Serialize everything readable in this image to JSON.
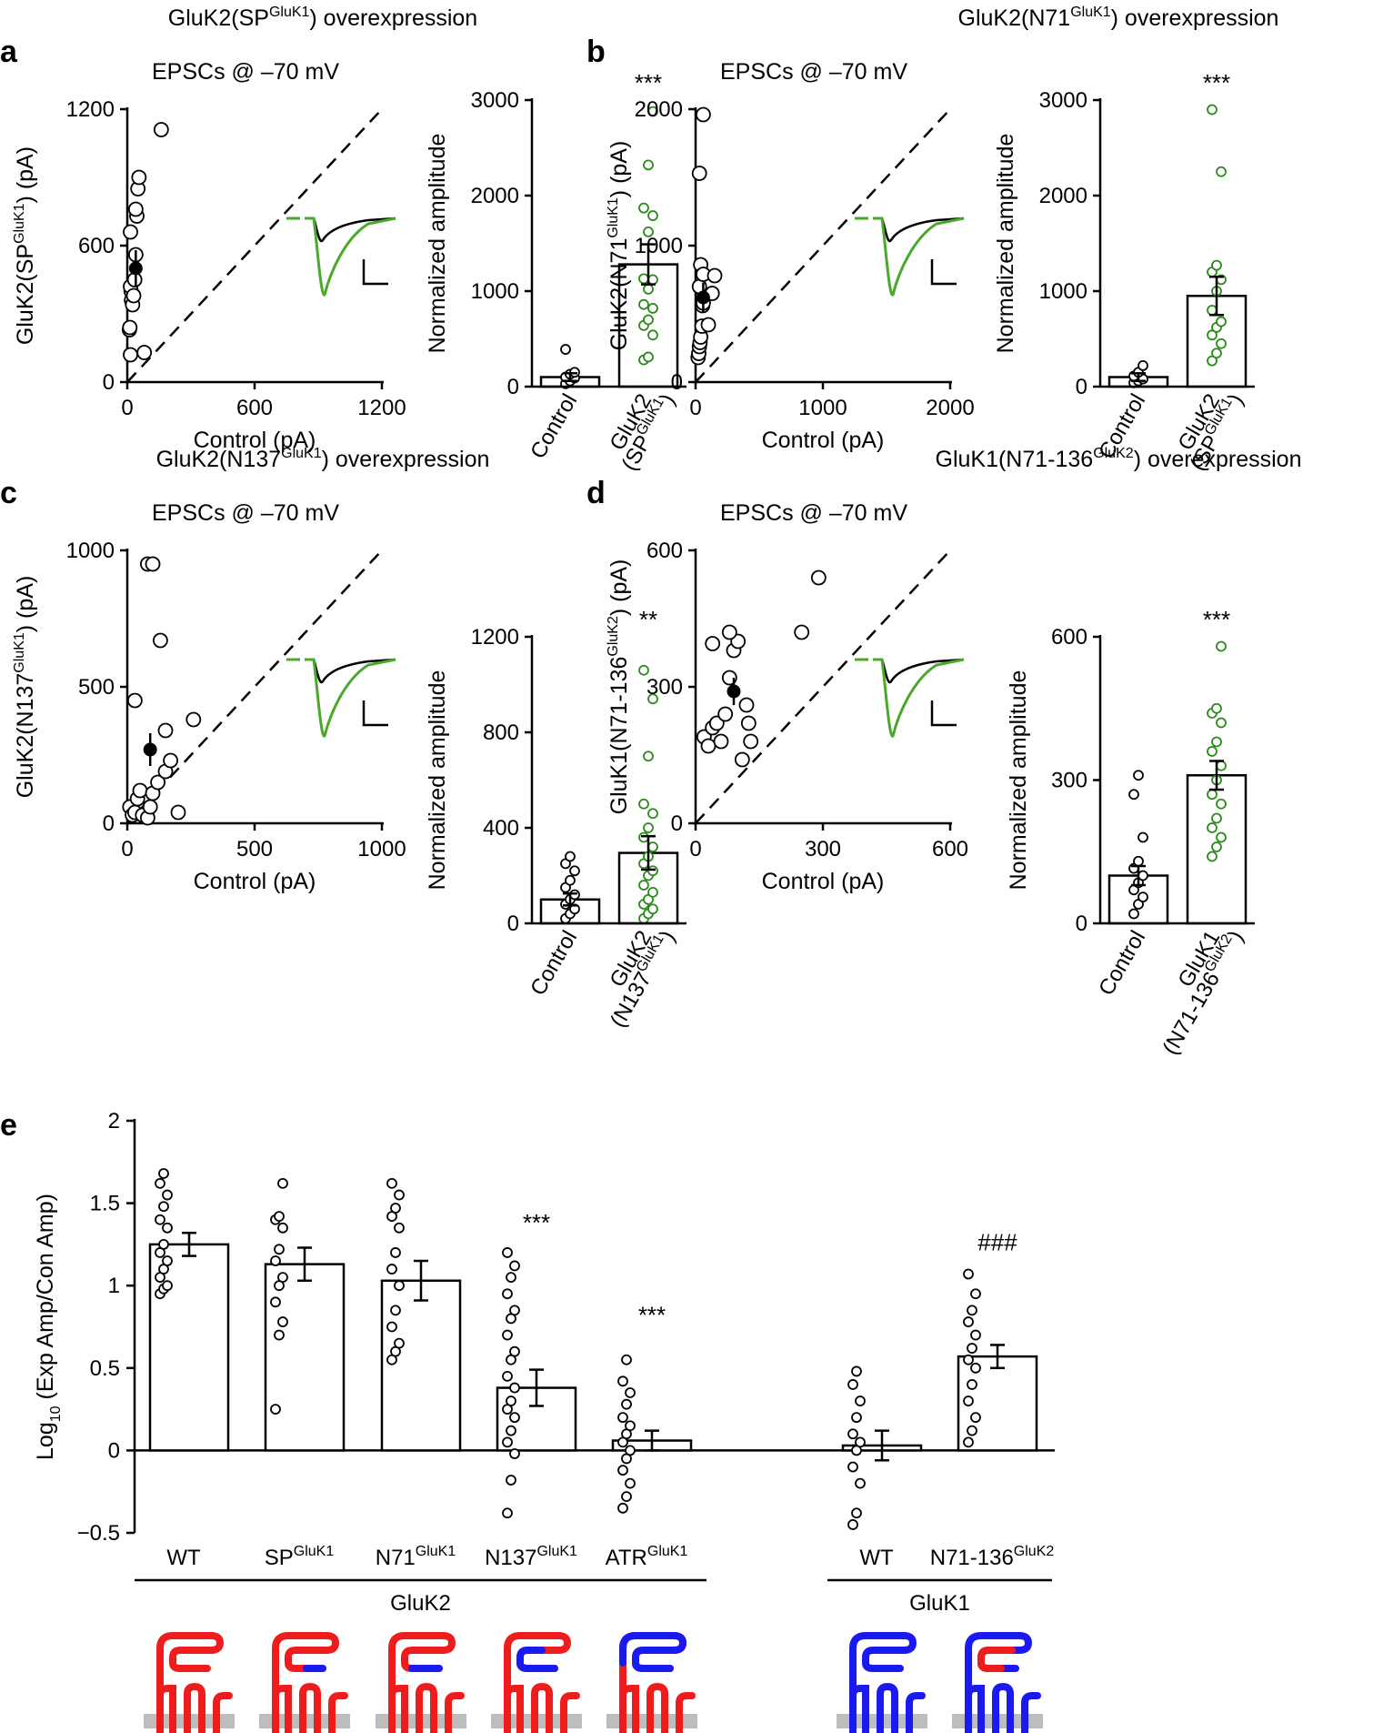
{
  "colors": {
    "control": "#000000",
    "experimental": "#2a8a1a",
    "trace_green": "#4aa82a",
    "gluk2_red": "#ee1c1c",
    "gluk1_blue": "#1a1af0",
    "membrane": "#bdbdbd"
  },
  "chart_data": [
    {
      "id": "a",
      "letter": "a",
      "title": {
        "base": "GluK2(SP",
        "sup": "GluK1",
        "rest": ") overexpression"
      },
      "scatter": {
        "type": "scatter",
        "subtitle": "EPSCs @ –70 mV",
        "xlabel": "Control (pA)",
        "ylabel": {
          "base": "GluK2(SP",
          "sup": "GluK1",
          "rest": ") (pA)"
        },
        "xlim": [
          0,
          1200
        ],
        "ylim": [
          0,
          1200
        ],
        "xticks": [
          0,
          600,
          1200
        ],
        "yticks": [
          0,
          600,
          1200
        ],
        "points": [
          [
            15,
            120
          ],
          [
            10,
            230
          ],
          [
            12,
            240
          ],
          [
            20,
            360
          ],
          [
            18,
            400
          ],
          [
            15,
            420
          ],
          [
            25,
            340
          ],
          [
            30,
            380
          ],
          [
            35,
            450
          ],
          [
            40,
            560
          ],
          [
            15,
            660
          ],
          [
            45,
            730
          ],
          [
            40,
            760
          ],
          [
            50,
            850
          ],
          [
            55,
            900
          ],
          [
            160,
            1110
          ],
          [
            80,
            130
          ]
        ],
        "mean": {
          "x": 40,
          "y": 500,
          "err": 80
        }
      },
      "bar": {
        "type": "bar",
        "ylabel": "Normalized amplitude",
        "ylim": [
          0,
          3000
        ],
        "yticks": [
          0,
          1000,
          2000,
          3000
        ],
        "categories": [
          {
            "label": "Control"
          },
          {
            "base": "GluK2",
            "line2": "(SP",
            "sup": "GluK1",
            "rest": ")"
          }
        ],
        "means": [
          100,
          1280
        ],
        "errors": [
          40,
          210
        ],
        "points": [
          [
            30,
            60,
            90,
            100,
            130,
            150,
            390
          ],
          [
            280,
            310,
            540,
            640,
            700,
            820,
            860,
            1020,
            1120,
            1130,
            1620,
            1790,
            1870,
            2320,
            2880
          ]
        ],
        "significance": "***"
      }
    },
    {
      "id": "b",
      "letter": "b",
      "title": {
        "base": "GluK2(N71",
        "sup": "GluK1",
        "rest": ") overexpression"
      },
      "scatter": {
        "type": "scatter",
        "subtitle": "EPSCs @ –70 mV",
        "xlabel": "Control (pA)",
        "ylabel": {
          "base": "GluK2(N71",
          "sup": "GluK1",
          "rest": ") (pA)"
        },
        "xlim": [
          0,
          2000
        ],
        "ylim": [
          0,
          2000
        ],
        "xticks": [
          0,
          1000,
          2000
        ],
        "yticks": [
          0,
          1000,
          2000
        ],
        "points": [
          [
            20,
            180
          ],
          [
            25,
            210
          ],
          [
            30,
            260
          ],
          [
            35,
            290
          ],
          [
            40,
            330
          ],
          [
            50,
            410
          ],
          [
            55,
            560
          ],
          [
            60,
            580
          ],
          [
            70,
            640
          ],
          [
            30,
            700
          ],
          [
            40,
            860
          ],
          [
            60,
            790
          ],
          [
            150,
            780
          ],
          [
            130,
            650
          ],
          [
            100,
            420
          ],
          [
            30,
            1530
          ],
          [
            60,
            1960
          ]
        ],
        "mean": {
          "x": 60,
          "y": 620,
          "err": 110
        }
      },
      "bar": {
        "type": "bar",
        "ylabel": "Normalized amplitude",
        "ylim": [
          0,
          3000
        ],
        "yticks": [
          0,
          1000,
          2000,
          3000
        ],
        "categories": [
          {
            "label": "Control"
          },
          {
            "base": "GluK2",
            "line2": "(SP",
            "sup": "GluK1",
            "rest": ")"
          }
        ],
        "means": [
          100,
          950
        ],
        "errors": [
          40,
          200
        ],
        "points": [
          [
            40,
            60,
            80,
            110,
            150,
            220
          ],
          [
            270,
            350,
            450,
            540,
            620,
            680,
            800,
            1000,
            1120,
            1200,
            1270,
            2250,
            2900
          ]
        ],
        "significance": "***"
      }
    },
    {
      "id": "c",
      "letter": "c",
      "title": {
        "base": "GluK2(N137",
        "sup": "GluK1",
        "rest": ") overexpression"
      },
      "scatter": {
        "type": "scatter",
        "subtitle": "EPSCs @ –70 mV",
        "xlabel": "Control (pA)",
        "ylabel": {
          "base": "GluK2(N137",
          "sup": "GluK1",
          "rest": ") (pA)"
        },
        "xlim": [
          0,
          1000
        ],
        "ylim": [
          0,
          1000
        ],
        "xticks": [
          0,
          500,
          1000
        ],
        "yticks": [
          0,
          500,
          1000
        ],
        "points": [
          [
            10,
            60
          ],
          [
            20,
            30
          ],
          [
            30,
            40
          ],
          [
            40,
            90
          ],
          [
            50,
            120
          ],
          [
            60,
            30
          ],
          [
            80,
            20
          ],
          [
            90,
            60
          ],
          [
            100,
            110
          ],
          [
            120,
            150
          ],
          [
            150,
            190
          ],
          [
            170,
            230
          ],
          [
            200,
            40
          ],
          [
            260,
            380
          ],
          [
            150,
            340
          ],
          [
            130,
            670
          ],
          [
            80,
            950
          ],
          [
            100,
            950
          ],
          [
            30,
            450
          ]
        ],
        "mean": {
          "x": 90,
          "y": 270,
          "err": 60
        }
      },
      "bar": {
        "type": "bar",
        "ylabel": "Normalized amplitude",
        "ylim": [
          0,
          1200
        ],
        "yticks": [
          0,
          400,
          800,
          1200
        ],
        "categories": [
          {
            "label": "Control"
          },
          {
            "base": "GluK2",
            "line2": "(N137",
            "sup": "GluK1",
            "rest": ")"
          }
        ],
        "means": [
          100,
          295
        ],
        "errors": [
          25,
          70
        ],
        "points": [
          [
            20,
            40,
            60,
            80,
            100,
            120,
            150,
            180,
            220,
            250,
            280
          ],
          [
            20,
            40,
            60,
            80,
            100,
            130,
            160,
            200,
            220,
            250,
            280,
            320,
            360,
            400,
            460,
            500,
            700,
            940,
            1060
          ]
        ],
        "significance": "**"
      }
    },
    {
      "id": "d",
      "letter": "d",
      "title": {
        "base": "GluK1(N71-136",
        "sup": "GluK2",
        "rest": ") overexpression"
      },
      "scatter": {
        "type": "scatter",
        "subtitle": "EPSCs @ –70 mV",
        "xlabel": "Control (pA)",
        "ylabel": {
          "base": "GluK1(N71-136",
          "sup": "GluK2",
          "rest": ") (pA)"
        },
        "xlim": [
          0,
          600
        ],
        "ylim": [
          0,
          600
        ],
        "xticks": [
          0,
          300,
          600
        ],
        "yticks": [
          0,
          300,
          600
        ],
        "points": [
          [
            20,
            190
          ],
          [
            30,
            170
          ],
          [
            40,
            210
          ],
          [
            50,
            220
          ],
          [
            60,
            180
          ],
          [
            70,
            240
          ],
          [
            80,
            320
          ],
          [
            90,
            380
          ],
          [
            100,
            400
          ],
          [
            110,
            140
          ],
          [
            120,
            260
          ],
          [
            125,
            220
          ],
          [
            130,
            180
          ],
          [
            80,
            420
          ],
          [
            40,
            395
          ],
          [
            250,
            420
          ],
          [
            290,
            540
          ]
        ],
        "mean": {
          "x": 90,
          "y": 290,
          "err": 30
        }
      },
      "bar": {
        "type": "bar",
        "ylabel": "Normalized amplitude",
        "ylim": [
          0,
          600
        ],
        "yticks": [
          0,
          300,
          600
        ],
        "categories": [
          {
            "label": "Control"
          },
          {
            "base": "GluK1",
            "line2": "(N71-136",
            "sup": "GluK2",
            "rest": ")"
          }
        ],
        "means": [
          100,
          310
        ],
        "errors": [
          20,
          30
        ],
        "points": [
          [
            20,
            40,
            55,
            70,
            85,
            100,
            115,
            130,
            180,
            270,
            310
          ],
          [
            140,
            160,
            180,
            200,
            220,
            250,
            270,
            300,
            330,
            360,
            380,
            420,
            440,
            450,
            580
          ]
        ],
        "significance": "***"
      }
    },
    {
      "id": "e",
      "letter": "e",
      "type": "bar",
      "ylabel": {
        "pre": "Log",
        "sub": "10",
        "rest": " (Exp Amp/Con Amp)"
      },
      "ylim": [
        -0.5,
        2
      ],
      "yticks": [
        -0.5,
        0,
        0.5,
        1,
        1.5,
        2
      ],
      "ytick_labels": [
        "−0.5",
        "0",
        "0.5",
        "1",
        "1.5",
        "2"
      ],
      "bars": [
        {
          "base": "WT",
          "sup": "",
          "mean": 1.25,
          "err": 0.07,
          "sig": "",
          "points": [
            0.95,
            0.98,
            1.0,
            1.05,
            1.1,
            1.15,
            1.2,
            1.25,
            1.35,
            1.4,
            1.48,
            1.55,
            1.62,
            1.68
          ]
        },
        {
          "base": "SP",
          "sup": "GluK1",
          "mean": 1.13,
          "err": 0.1,
          "sig": "",
          "points": [
            0.25,
            0.7,
            0.78,
            0.9,
            1.0,
            1.05,
            1.15,
            1.22,
            1.35,
            1.4,
            1.42,
            1.62
          ]
        },
        {
          "base": "N71",
          "sup": "GluK1",
          "mean": 1.03,
          "err": 0.12,
          "sig": "",
          "points": [
            0.55,
            0.6,
            0.65,
            0.75,
            0.85,
            1.0,
            1.1,
            1.2,
            1.35,
            1.42,
            1.47,
            1.55,
            1.62
          ]
        },
        {
          "base": "N137",
          "sup": "GluK1",
          "mean": 0.38,
          "err": 0.11,
          "sig": "***",
          "points": [
            -0.38,
            -0.18,
            -0.02,
            0.05,
            0.12,
            0.2,
            0.25,
            0.3,
            0.38,
            0.45,
            0.55,
            0.6,
            0.7,
            0.8,
            0.85,
            0.95,
            1.05,
            1.12,
            1.2
          ]
        },
        {
          "base": "ATR",
          "sup": "GluK1",
          "mean": 0.06,
          "err": 0.06,
          "sig": "***",
          "points": [
            -0.35,
            -0.28,
            -0.2,
            -0.12,
            -0.05,
            0.0,
            0.05,
            0.1,
            0.15,
            0.2,
            0.28,
            0.35,
            0.42,
            0.55
          ]
        },
        {
          "base": "WT",
          "sup": "",
          "mean": 0.03,
          "err": 0.09,
          "sig": "",
          "points": [
            -0.45,
            -0.38,
            -0.2,
            -0.1,
            0.0,
            0.05,
            0.1,
            0.2,
            0.3,
            0.4,
            0.48
          ]
        },
        {
          "base": "N71-136",
          "sup": "GluK2",
          "mean": 0.57,
          "err": 0.07,
          "sig": "###",
          "points": [
            0.05,
            0.12,
            0.2,
            0.3,
            0.4,
            0.5,
            0.55,
            0.62,
            0.7,
            0.78,
            0.85,
            0.95,
            1.07
          ]
        }
      ],
      "groups": [
        {
          "label": "GluK2",
          "bars": [
            0,
            1,
            2,
            3,
            4
          ]
        },
        {
          "label": "GluK1",
          "bars": [
            5,
            6
          ]
        }
      ]
    }
  ],
  "schematics": [
    {
      "name": "wt-gluk2",
      "base": "red",
      "seg": "none"
    },
    {
      "name": "sp-gluk1",
      "base": "red",
      "seg": "sp"
    },
    {
      "name": "n71-gluk1",
      "base": "red",
      "seg": "n71"
    },
    {
      "name": "n137-gluk1",
      "base": "red",
      "seg": "n137"
    },
    {
      "name": "atr-gluk1",
      "base": "red",
      "seg": "atr"
    },
    {
      "name": "wt-gluk1",
      "base": "blue",
      "seg": "none"
    },
    {
      "name": "n71-136-gluk2",
      "base": "blue",
      "seg": "n71-136"
    }
  ]
}
